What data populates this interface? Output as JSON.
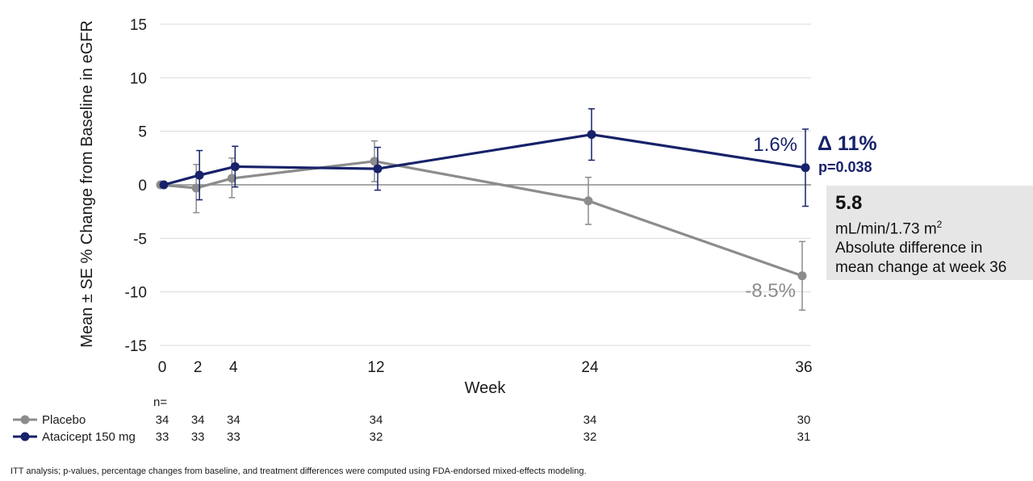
{
  "chart_data": {
    "type": "line",
    "xlabel": "Week",
    "ylabel": "Mean ± SE % Change from Baseline in eGFR",
    "x_ticks": [
      0,
      2,
      4,
      12,
      24,
      36
    ],
    "y_ticks": [
      15,
      10,
      5,
      0,
      -5,
      -10,
      -15
    ],
    "y_tick_labels": [
      "15",
      "10",
      "5",
      "0",
      "-5",
      "-10",
      "-15"
    ],
    "xlim": [
      0,
      36
    ],
    "ylim": [
      -15,
      15
    ],
    "grid": true,
    "series": [
      {
        "name": "Placebo",
        "color": "#8c8c8c",
        "x": [
          0,
          2,
          4,
          12,
          24,
          36
        ],
        "y": [
          0,
          -0.3,
          0.6,
          2.2,
          -1.5,
          -8.5
        ],
        "se_low": [
          0,
          -2.6,
          -1.2,
          0.3,
          -3.7,
          -11.7
        ],
        "se_high": [
          0,
          1.9,
          2.5,
          4.1,
          0.7,
          -5.3
        ],
        "n": [
          "34",
          "34",
          "34",
          "34",
          "34",
          "30"
        ]
      },
      {
        "name": "Atacicept 150 mg",
        "color": "#17226a",
        "x": [
          0,
          2,
          4,
          12,
          24,
          36
        ],
        "y": [
          0,
          0.9,
          1.7,
          1.5,
          4.7,
          1.6
        ],
        "se_low": [
          0,
          -1.4,
          -0.2,
          -0.5,
          2.3,
          -2.0
        ],
        "se_high": [
          0,
          3.2,
          3.6,
          3.5,
          7.1,
          5.2
        ],
        "n": [
          "33",
          "33",
          "33",
          "32",
          "32",
          "31"
        ]
      }
    ],
    "annotations": {
      "atacicept_end": "1.6%",
      "placebo_end": "-8.5%",
      "delta": "Δ 11%",
      "p_value": "p=0.038"
    },
    "n_header": "n="
  },
  "box": {
    "value": "5.8",
    "unit_main": "mL/min/1.73 m",
    "unit_sup": "2",
    "line2": "Absolute difference in",
    "line3": "mean change at week 36"
  },
  "footnote": "ITT analysis; p-values, percentage changes from baseline, and treatment differences were computed using FDA-endorsed mixed-effects modeling."
}
